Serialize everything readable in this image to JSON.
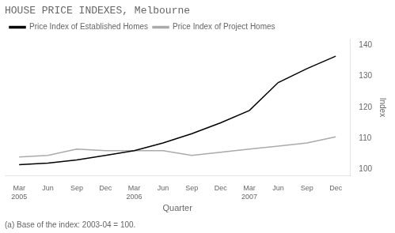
{
  "chart_data": {
    "type": "line",
    "title": "HOUSE PRICE INDEXES, Melbourne",
    "x_label": "Quarter",
    "y_label": "Index",
    "annotations": [
      "(a) Base of the index: 2003-04 = 100."
    ],
    "categories": [
      "Mar\n2005",
      "Jun",
      "Sep",
      "Dec",
      "Mar\n2006",
      "Jun",
      "Sep",
      "Dec",
      "Mar\n2007",
      "Jun",
      "Sep",
      "Dec"
    ],
    "series": [
      {
        "name": "Price Index of Established Homes",
        "color": "#000000",
        "values": [
          101.5,
          102.0,
          103.0,
          104.5,
          106.0,
          108.5,
          111.5,
          115.0,
          119.0,
          128.0,
          132.5,
          136.5
        ]
      },
      {
        "name": "Price Index of Project Homes",
        "color": "#aaaaaa",
        "values": [
          104.0,
          104.5,
          106.5,
          106.0,
          106.0,
          106.0,
          104.5,
          105.5,
          106.5,
          107.5,
          108.5,
          110.5
        ]
      }
    ],
    "ylim": [
      98,
      142
    ],
    "yticks": [
      100,
      110,
      120,
      130,
      140
    ],
    "grid": false,
    "legend": "upper left"
  }
}
